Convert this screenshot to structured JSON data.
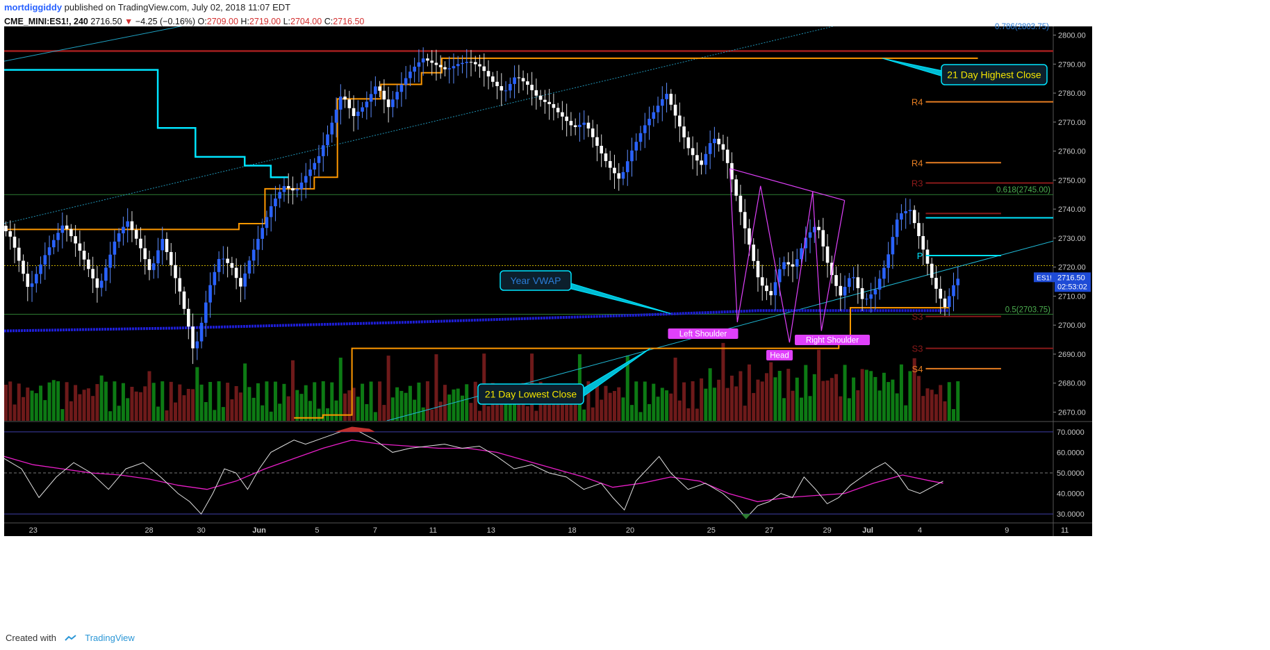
{
  "header": {
    "author": "mortdiggiddy",
    "published_text": "published on TradingView.com, July 02, 2018 11:07 EDT",
    "symbol": "CME_MINI:ES1!, 240",
    "last_price": "2716.50",
    "change": "−4.25 (−0.16%)",
    "ohlc": [
      {
        "label": "O:",
        "value": "2709.00"
      },
      {
        "label": "H:",
        "value": "2719.00"
      },
      {
        "label": "L:",
        "value": "2704.00"
      },
      {
        "label": "C:",
        "value": "2716.50"
      }
    ]
  },
  "footer": {
    "created_with": "Created with",
    "brand": "TradingView"
  },
  "colors": {
    "background": "#000000",
    "up_candle": "#2962ff",
    "down_candle": "#ffffff",
    "vol_up": "#0d7a14",
    "vol_down": "#6e1a1a",
    "donchian_high": "#ff9800",
    "donchian_cyan": "#00e5ff",
    "vwap": "#1e1ed6",
    "rsi": "#e0e0e0",
    "rsi_ma": "#e91ec8",
    "pattern": "#e040fb",
    "accent_red": "#8b1a1a"
  },
  "chart_data": {
    "type": "candlestick",
    "price_axis": {
      "ylim": [
        2667,
        2803
      ],
      "ticks": [
        "2800.00",
        "2790.00",
        "2780.00",
        "2770.00",
        "2760.00",
        "2750.00",
        "2740.00",
        "2730.00",
        "2720.00",
        "2710.00",
        "2700.00",
        "2690.00",
        "2680.00",
        "2670.00"
      ]
    },
    "rsi_axis": {
      "ylim": [
        26,
        74
      ],
      "ticks": [
        "70.0000",
        "60.0000",
        "50.0000",
        "40.0000",
        "30.0000"
      ]
    },
    "time_axis": {
      "start": 1,
      "end": 19.1,
      "labels": [
        {
          "t": 1.5,
          "label": "23"
        },
        {
          "t": 3.5,
          "label": "28"
        },
        {
          "t": 4.4,
          "label": "30"
        },
        {
          "t": 5.4,
          "label": "Jun"
        },
        {
          "t": 6.4,
          "label": "5"
        },
        {
          "t": 7.4,
          "label": "7"
        },
        {
          "t": 8.4,
          "label": "11"
        },
        {
          "t": 9.4,
          "label": "13"
        },
        {
          "t": 10.8,
          "label": "18"
        },
        {
          "t": 11.8,
          "label": "20"
        },
        {
          "t": 13.2,
          "label": "25"
        },
        {
          "t": 14.2,
          "label": "27"
        },
        {
          "t": 15.2,
          "label": "29"
        },
        {
          "t": 15.9,
          "label": "Jul"
        },
        {
          "t": 16.8,
          "label": "4"
        },
        {
          "t": 18.3,
          "label": "9"
        },
        {
          "t": 19.3,
          "label": "11"
        }
      ]
    },
    "price_path": [
      [
        1.0,
        2735
      ],
      [
        1.2,
        2730
      ],
      [
        1.5,
        2712
      ],
      [
        1.8,
        2725
      ],
      [
        2.1,
        2735
      ],
      [
        2.4,
        2725
      ],
      [
        2.7,
        2712
      ],
      [
        3.0,
        2730
      ],
      [
        3.2,
        2736
      ],
      [
        3.4,
        2728
      ],
      [
        3.6,
        2718
      ],
      [
        3.8,
        2730
      ],
      [
        4.0,
        2718
      ],
      [
        4.1,
        2712
      ],
      [
        4.25,
        2700
      ],
      [
        4.35,
        2690
      ],
      [
        4.45,
        2698
      ],
      [
        4.6,
        2712
      ],
      [
        4.8,
        2724
      ],
      [
        5.0,
        2720
      ],
      [
        5.15,
        2713
      ],
      [
        5.3,
        2722
      ],
      [
        5.5,
        2732
      ],
      [
        5.7,
        2742
      ],
      [
        5.9,
        2748
      ],
      [
        6.1,
        2746
      ],
      [
        6.3,
        2752
      ],
      [
        6.5,
        2758
      ],
      [
        6.7,
        2768
      ],
      [
        6.9,
        2780
      ],
      [
        7.1,
        2772
      ],
      [
        7.3,
        2776
      ],
      [
        7.5,
        2783
      ],
      [
        7.7,
        2775
      ],
      [
        7.9,
        2782
      ],
      [
        8.1,
        2788
      ],
      [
        8.3,
        2792
      ],
      [
        8.5,
        2790
      ],
      [
        8.7,
        2788
      ],
      [
        8.9,
        2790
      ],
      [
        9.1,
        2791
      ],
      [
        9.3,
        2789
      ],
      [
        9.5,
        2784
      ],
      [
        9.7,
        2780
      ],
      [
        9.9,
        2786
      ],
      [
        10.1,
        2783
      ],
      [
        10.3,
        2778
      ],
      [
        10.5,
        2776
      ],
      [
        10.7,
        2772
      ],
      [
        10.9,
        2768
      ],
      [
        11.1,
        2770
      ],
      [
        11.3,
        2762
      ],
      [
        11.5,
        2755
      ],
      [
        11.7,
        2750
      ],
      [
        11.9,
        2760
      ],
      [
        12.1,
        2768
      ],
      [
        12.3,
        2774
      ],
      [
        12.5,
        2780
      ],
      [
        12.7,
        2770
      ],
      [
        12.9,
        2760
      ],
      [
        13.1,
        2755
      ],
      [
        13.3,
        2765
      ],
      [
        13.5,
        2760
      ],
      [
        13.7,
        2745
      ],
      [
        13.9,
        2730
      ],
      [
        14.1,
        2715
      ],
      [
        14.3,
        2710
      ],
      [
        14.5,
        2722
      ],
      [
        14.7,
        2720
      ],
      [
        14.9,
        2730
      ],
      [
        15.1,
        2735
      ],
      [
        15.3,
        2720
      ],
      [
        15.5,
        2710
      ],
      [
        15.7,
        2718
      ],
      [
        15.9,
        2708
      ],
      [
        16.1,
        2712
      ],
      [
        16.3,
        2722
      ],
      [
        16.5,
        2738
      ],
      [
        16.7,
        2740
      ],
      [
        16.9,
        2728
      ],
      [
        17.1,
        2715
      ],
      [
        17.3,
        2706
      ],
      [
        17.5,
        2716
      ]
    ],
    "donchian_high_steps": [
      [
        1.0,
        2733
      ],
      [
        5.05,
        2733
      ],
      [
        5.05,
        2735
      ],
      [
        5.5,
        2735
      ],
      [
        5.5,
        2747
      ],
      [
        6.35,
        2747
      ],
      [
        6.35,
        2751
      ],
      [
        6.75,
        2751
      ],
      [
        6.75,
        2778
      ],
      [
        7.5,
        2778
      ],
      [
        7.5,
        2783
      ],
      [
        8.2,
        2783
      ],
      [
        8.2,
        2787
      ],
      [
        8.55,
        2787
      ],
      [
        8.55,
        2792
      ],
      [
        11.0,
        2792
      ],
      [
        17.8,
        2792
      ]
    ],
    "donchian_low_steps": [
      [
        6.0,
        2668
      ],
      [
        6.5,
        2668
      ],
      [
        6.5,
        2669
      ],
      [
        7.0,
        2669
      ],
      [
        7.0,
        2692
      ],
      [
        15.4,
        2692
      ],
      [
        15.4,
        2695
      ],
      [
        15.6,
        2695
      ],
      [
        15.6,
        2706
      ],
      [
        17.3,
        2706
      ]
    ],
    "cyan_steps": [
      [
        1.0,
        2788
      ],
      [
        3.65,
        2788
      ],
      [
        3.65,
        2768
      ],
      [
        4.3,
        2768
      ],
      [
        4.3,
        2758
      ],
      [
        5.15,
        2758
      ],
      [
        5.15,
        2755
      ],
      [
        5.6,
        2755
      ],
      [
        5.6,
        2751
      ],
      [
        5.9,
        2751
      ]
    ],
    "vwap_points": [
      [
        1.0,
        2698
      ],
      [
        4.0,
        2699
      ],
      [
        8.0,
        2701
      ],
      [
        12.0,
        2703.5
      ],
      [
        14.0,
        2705
      ],
      [
        17.3,
        2705
      ]
    ],
    "pivot_lines": [
      {
        "label": "R4",
        "y": 2777,
        "t0": 16.9,
        "t1": 19.1,
        "color": "#e67e22"
      },
      {
        "label": "R4",
        "y": 2756,
        "t0": 16.9,
        "t1": 18.2,
        "color": "#e67e22"
      },
      {
        "label": "R3",
        "y": 2749,
        "t0": 16.9,
        "t1": 19.1,
        "color": "#8b1a1a"
      },
      {
        "label": "",
        "y": 2738.5,
        "t0": 16.9,
        "t1": 18.2,
        "color": "#8b1a1a"
      },
      {
        "label": "",
        "y": 2737,
        "t0": 16.9,
        "t1": 19.1,
        "color": "#00e5ff"
      },
      {
        "label": "P",
        "y": 2724,
        "t0": 16.9,
        "t1": 18.2,
        "color": "#00e5ff"
      },
      {
        "label": "S3",
        "y": 2703,
        "t0": 16.9,
        "t1": 18.2,
        "color": "#8b1a1a"
      },
      {
        "label": "S3",
        "y": 2692,
        "t0": 16.9,
        "t1": 19.1,
        "color": "#8b1a1a"
      },
      {
        "label": "S4",
        "y": 2685,
        "t0": 16.9,
        "t1": 18.2,
        "color": "#e67e22"
      }
    ],
    "horizontal_levels": [
      {
        "y": 2794.5,
        "color": "#8b1a1a",
        "width": 3
      },
      {
        "y": 2745,
        "color": "#2e7d32",
        "width": 1,
        "label": "0.618(2745.00)"
      },
      {
        "y": 2703.75,
        "color": "#2e7d32",
        "width": 1,
        "label": "0.5(2703.75)"
      },
      {
        "y": 2720.5,
        "color": "#c9b100",
        "width": 1,
        "dash": "2,2"
      }
    ],
    "fib_top_label": "0.786(2803.75)",
    "annotations": [
      {
        "text": "21 Day Highest Close",
        "anchor_t": 16.15,
        "anchor_y": 2792
      },
      {
        "text": "Year VWAP",
        "anchor_t": 12.5,
        "anchor_y": 2704
      },
      {
        "text": "21 Day Lowest Close",
        "anchor_t": 12.15,
        "anchor_y": 2692
      }
    ],
    "pattern_labels": [
      "Left Shoulder",
      "Head",
      "Right Shoulder"
    ],
    "price_badge": {
      "value": "2716.50",
      "symbol": "ES1!",
      "countdown": "02:53:02"
    },
    "rsi_path": [
      [
        1.0,
        57
      ],
      [
        1.3,
        52
      ],
      [
        1.6,
        38
      ],
      [
        1.9,
        48
      ],
      [
        2.2,
        55
      ],
      [
        2.5,
        50
      ],
      [
        2.8,
        42
      ],
      [
        3.1,
        52
      ],
      [
        3.4,
        55
      ],
      [
        3.7,
        48
      ],
      [
        4.0,
        40
      ],
      [
        4.2,
        36
      ],
      [
        4.4,
        30
      ],
      [
        4.6,
        40
      ],
      [
        4.8,
        52
      ],
      [
        5.0,
        50
      ],
      [
        5.2,
        42
      ],
      [
        5.4,
        52
      ],
      [
        5.6,
        60
      ],
      [
        5.8,
        63
      ],
      [
        6.0,
        66
      ],
      [
        6.2,
        64
      ],
      [
        6.5,
        67
      ],
      [
        6.8,
        70
      ],
      [
        7.0,
        72
      ],
      [
        7.2,
        69
      ],
      [
        7.4,
        66
      ],
      [
        7.7,
        60
      ],
      [
        8.0,
        62
      ],
      [
        8.3,
        63
      ],
      [
        8.6,
        64
      ],
      [
        8.9,
        62
      ],
      [
        9.2,
        63
      ],
      [
        9.5,
        58
      ],
      [
        9.8,
        52
      ],
      [
        10.1,
        54
      ],
      [
        10.4,
        50
      ],
      [
        10.7,
        48
      ],
      [
        11.0,
        42
      ],
      [
        11.3,
        45
      ],
      [
        11.5,
        38
      ],
      [
        11.7,
        32
      ],
      [
        11.9,
        46
      ],
      [
        12.1,
        52
      ],
      [
        12.3,
        58
      ],
      [
        12.5,
        50
      ],
      [
        12.8,
        42
      ],
      [
        13.1,
        45
      ],
      [
        13.4,
        40
      ],
      [
        13.6,
        35
      ],
      [
        13.8,
        28
      ],
      [
        14.0,
        34
      ],
      [
        14.2,
        36
      ],
      [
        14.4,
        40
      ],
      [
        14.6,
        38
      ],
      [
        14.8,
        48
      ],
      [
        15.0,
        42
      ],
      [
        15.2,
        35
      ],
      [
        15.4,
        38
      ],
      [
        15.6,
        44
      ],
      [
        15.8,
        48
      ],
      [
        16.0,
        52
      ],
      [
        16.2,
        55
      ],
      [
        16.4,
        50
      ],
      [
        16.6,
        42
      ],
      [
        16.8,
        40
      ],
      [
        17.0,
        43
      ],
      [
        17.2,
        46
      ]
    ],
    "rsi_ma_path": [
      [
        1.0,
        58
      ],
      [
        1.5,
        54
      ],
      [
        2.0,
        52
      ],
      [
        2.5,
        50
      ],
      [
        3.0,
        49
      ],
      [
        3.5,
        47
      ],
      [
        4.0,
        44
      ],
      [
        4.5,
        42
      ],
      [
        5.0,
        46
      ],
      [
        5.5,
        52
      ],
      [
        6.0,
        57
      ],
      [
        6.5,
        62
      ],
      [
        7.0,
        66
      ],
      [
        7.5,
        64
      ],
      [
        8.0,
        63
      ],
      [
        8.5,
        62
      ],
      [
        9.0,
        62
      ],
      [
        9.5,
        60
      ],
      [
        10.0,
        56
      ],
      [
        10.5,
        52
      ],
      [
        11.0,
        48
      ],
      [
        11.5,
        43
      ],
      [
        12.0,
        45
      ],
      [
        12.5,
        48
      ],
      [
        13.0,
        46
      ],
      [
        13.5,
        40
      ],
      [
        14.0,
        36
      ],
      [
        14.5,
        38
      ],
      [
        15.0,
        39
      ],
      [
        15.5,
        40
      ],
      [
        16.0,
        45
      ],
      [
        16.5,
        49
      ],
      [
        17.0,
        46
      ],
      [
        17.2,
        45
      ]
    ]
  }
}
